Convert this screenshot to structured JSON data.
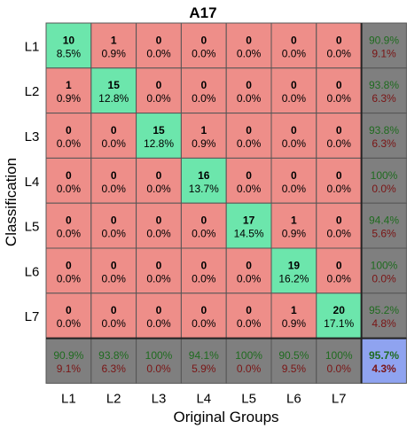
{
  "chart_data": {
    "type": "heatmap",
    "title": "A17",
    "xlabel": "Original Groups",
    "ylabel": "Classification",
    "row_labels": [
      "L1",
      "L2",
      "L3",
      "L4",
      "L5",
      "L6",
      "L7"
    ],
    "col_labels": [
      "L1",
      "L2",
      "L3",
      "L4",
      "L5",
      "L6",
      "L7"
    ],
    "counts": [
      [
        10,
        1,
        0,
        0,
        0,
        0,
        0
      ],
      [
        1,
        15,
        0,
        0,
        0,
        0,
        0
      ],
      [
        0,
        0,
        15,
        1,
        0,
        0,
        0
      ],
      [
        0,
        0,
        0,
        16,
        0,
        0,
        0
      ],
      [
        0,
        0,
        0,
        0,
        17,
        1,
        0
      ],
      [
        0,
        0,
        0,
        0,
        0,
        19,
        0
      ],
      [
        0,
        0,
        0,
        0,
        0,
        1,
        20
      ]
    ],
    "percents": [
      [
        "8.5%",
        "0.9%",
        "0.0%",
        "0.0%",
        "0.0%",
        "0.0%",
        "0.0%"
      ],
      [
        "0.9%",
        "12.8%",
        "0.0%",
        "0.0%",
        "0.0%",
        "0.0%",
        "0.0%"
      ],
      [
        "0.0%",
        "0.0%",
        "12.8%",
        "0.9%",
        "0.0%",
        "0.0%",
        "0.0%"
      ],
      [
        "0.0%",
        "0.0%",
        "0.0%",
        "13.7%",
        "0.0%",
        "0.0%",
        "0.0%"
      ],
      [
        "0.0%",
        "0.0%",
        "0.0%",
        "0.0%",
        "14.5%",
        "0.9%",
        "0.0%"
      ],
      [
        "0.0%",
        "0.0%",
        "0.0%",
        "0.0%",
        "0.0%",
        "16.2%",
        "0.0%"
      ],
      [
        "0.0%",
        "0.0%",
        "0.0%",
        "0.0%",
        "0.0%",
        "0.9%",
        "17.1%"
      ]
    ],
    "row_summary": [
      {
        "correct": "90.9%",
        "wrong": "9.1%"
      },
      {
        "correct": "93.8%",
        "wrong": "6.3%"
      },
      {
        "correct": "93.8%",
        "wrong": "6.3%"
      },
      {
        "correct": "100%",
        "wrong": "0.0%"
      },
      {
        "correct": "94.4%",
        "wrong": "5.6%"
      },
      {
        "correct": "100%",
        "wrong": "0.0%"
      },
      {
        "correct": "95.2%",
        "wrong": "4.8%"
      }
    ],
    "col_summary": [
      {
        "correct": "90.9%",
        "wrong": "9.1%"
      },
      {
        "correct": "93.8%",
        "wrong": "6.3%"
      },
      {
        "correct": "100%",
        "wrong": "0.0%"
      },
      {
        "correct": "94.1%",
        "wrong": "5.9%"
      },
      {
        "correct": "100%",
        "wrong": "0.0%"
      },
      {
        "correct": "90.5%",
        "wrong": "9.5%"
      },
      {
        "correct": "100%",
        "wrong": "0.0%"
      }
    ],
    "overall": {
      "correct": "95.7%",
      "wrong": "4.3%"
    },
    "colors": {
      "diagonal": "#6ce6ac",
      "off_diagonal": "#ee8e89",
      "summary": "#7f7f7f",
      "overall": "#8fa3f0",
      "correct_text": "#1f6b1f",
      "wrong_text": "#7a1515",
      "cell_text": "#000000"
    }
  }
}
